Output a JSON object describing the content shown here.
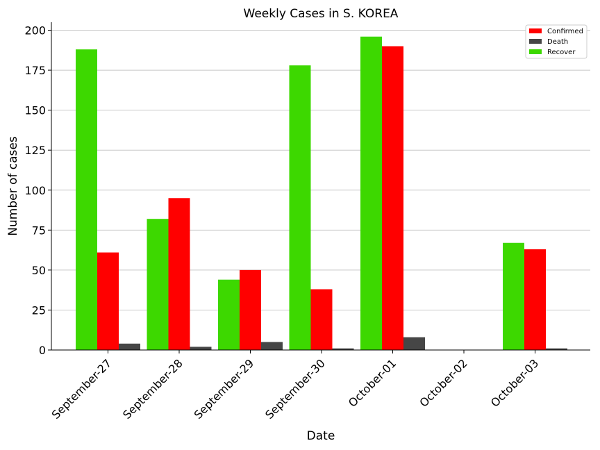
{
  "chart_data": {
    "type": "bar",
    "title": "Weekly Cases in S. KOREA",
    "xlabel": "Date",
    "ylabel": "Number of cases",
    "ylim": [
      0,
      205
    ],
    "yticks": [
      0,
      25,
      50,
      75,
      100,
      125,
      150,
      175,
      200
    ],
    "grid": "horizontal",
    "legend_position": "top-right",
    "categories": [
      "September-27",
      "September-28",
      "September-29",
      "September-30",
      "October-01",
      "October-02",
      "October-03"
    ],
    "series": [
      {
        "name": "Recover",
        "color": "#3dd800",
        "values": [
          188,
          82,
          44,
          178,
          196,
          0,
          67
        ]
      },
      {
        "name": "Confirmed",
        "color": "#ff0000",
        "values": [
          61,
          95,
          50,
          38,
          190,
          0,
          63
        ]
      },
      {
        "name": "Death",
        "color": "#464646",
        "values": [
          4,
          2,
          5,
          1,
          8,
          0,
          1
        ]
      }
    ],
    "legend_order": [
      "Confirmed",
      "Death",
      "Recover"
    ]
  }
}
